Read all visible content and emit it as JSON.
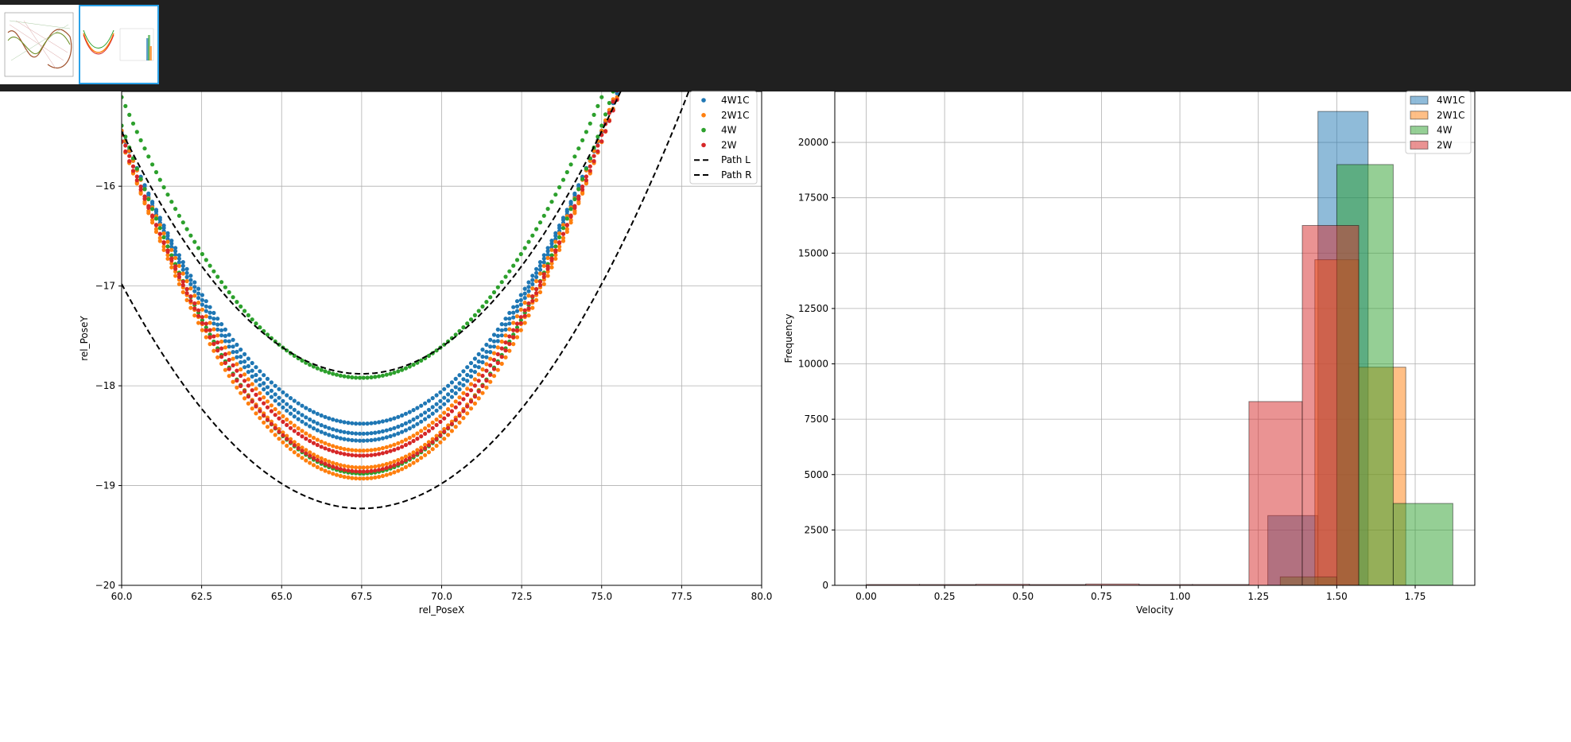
{
  "charts": [
    {
      "type": "scatter",
      "xlabel": "rel_PoseX",
      "ylabel": "rel_PoseY",
      "xlim": [
        60.0,
        80.0
      ],
      "ylim": [
        -20,
        -15.05
      ],
      "xticks": [
        "60.0",
        "62.5",
        "65.0",
        "67.5",
        "70.0",
        "72.5",
        "75.0",
        "77.5",
        "80.0"
      ],
      "yticks": [
        "-20",
        "-19",
        "-18",
        "-17",
        "-16"
      ],
      "grid": true,
      "legend_position": "top-right",
      "legend": [
        "4W1C",
        "2W1C",
        "4W",
        "2W",
        "Path L",
        "Path R"
      ],
      "series": [
        {
          "name": "4W1C",
          "color": "#1f77b4",
          "kind": "points",
          "curves": [
            {
              "vertex_x": 67.5,
              "vertex_y": -18.38,
              "a": 0.052,
              "from": 60,
              "to": 77.8
            },
            {
              "vertex_x": 67.5,
              "vertex_y": -18.48,
              "a": 0.054,
              "from": 60,
              "to": 77.8
            },
            {
              "vertex_x": 67.5,
              "vertex_y": -18.55,
              "a": 0.055,
              "from": 60,
              "to": 77.8
            }
          ]
        },
        {
          "name": "2W1C",
          "color": "#ff7f0e",
          "kind": "points",
          "curves": [
            {
              "vertex_x": 67.5,
              "vertex_y": -18.65,
              "a": 0.057,
              "from": 60,
              "to": 78.0
            },
            {
              "vertex_x": 67.5,
              "vertex_y": -18.82,
              "a": 0.058,
              "from": 60,
              "to": 78.0
            },
            {
              "vertex_x": 67.5,
              "vertex_y": -18.93,
              "a": 0.06,
              "from": 60,
              "to": 78.0
            }
          ]
        },
        {
          "name": "4W",
          "color": "#2ca02c",
          "kind": "points",
          "curves": [
            {
              "vertex_x": 67.5,
              "vertex_y": -17.92,
              "a": 0.05,
              "from": 60,
              "to": 77.2
            },
            {
              "vertex_x": 67.5,
              "vertex_y": -18.88,
              "a": 0.062,
              "from": 60,
              "to": 78.0
            }
          ]
        },
        {
          "name": "2W",
          "color": "#d62728",
          "kind": "points",
          "curves": [
            {
              "vertex_x": 67.5,
              "vertex_y": -18.7,
              "a": 0.056,
              "from": 60,
              "to": 78.3
            },
            {
              "vertex_x": 67.5,
              "vertex_y": -18.86,
              "a": 0.06,
              "from": 60,
              "to": 78.3
            }
          ]
        },
        {
          "name": "Path L",
          "color": "#000000",
          "kind": "dashed",
          "curves": [
            {
              "vertex_x": 67.5,
              "vertex_y": -17.88,
              "a": 0.0432,
              "from": 60,
              "to": 76.5
            }
          ]
        },
        {
          "name": "Path R",
          "color": "#000000",
          "kind": "dashed",
          "curves": [
            {
              "vertex_x": 67.5,
              "vertex_y": -19.23,
              "a": 0.04,
              "from": 60,
              "to": 78.8
            }
          ]
        }
      ]
    },
    {
      "type": "bar",
      "xlabel": "Velocity",
      "ylabel": "Frequency",
      "xlim": [
        -0.1,
        1.94
      ],
      "ylim": [
        0,
        22300
      ],
      "xticks": [
        0.0,
        0.25,
        0.5,
        0.75,
        1.0,
        1.25,
        1.5,
        1.75
      ],
      "yticks": [
        0,
        2500,
        5000,
        7500,
        10000,
        12500,
        15000,
        17500,
        20000
      ],
      "grid": true,
      "legend_position": "top-right",
      "legend": [
        "4W1C",
        "2W1C",
        "4W",
        "2W"
      ],
      "series": [
        {
          "name": "4W1C",
          "color": "#1f77b4",
          "bins": [
            {
              "x0": 1.28,
              "x1": 1.44,
              "count": 3150
            },
            {
              "x0": 1.44,
              "x1": 1.6,
              "count": 21400
            }
          ]
        },
        {
          "name": "2W1C",
          "color": "#ff7f0e",
          "bins": [
            {
              "x0": 1.43,
              "x1": 1.57,
              "count": 14700
            },
            {
              "x0": 1.57,
              "x1": 1.72,
              "count": 9850
            }
          ]
        },
        {
          "name": "4W",
          "color": "#2ca02c",
          "bins": [
            {
              "x0": 1.32,
              "x1": 1.5,
              "count": 380
            },
            {
              "x0": 1.5,
              "x1": 1.68,
              "count": 19000
            },
            {
              "x0": 1.68,
              "x1": 1.87,
              "count": 3700
            }
          ]
        },
        {
          "name": "2W",
          "color": "#d62728",
          "bins": [
            {
              "x0": 0.0,
              "x1": 0.17,
              "count": 40
            },
            {
              "x0": 0.17,
              "x1": 0.35,
              "count": 40
            },
            {
              "x0": 0.35,
              "x1": 0.52,
              "count": 50
            },
            {
              "x0": 0.52,
              "x1": 0.7,
              "count": 40
            },
            {
              "x0": 0.7,
              "x1": 0.87,
              "count": 60
            },
            {
              "x0": 0.87,
              "x1": 1.04,
              "count": 40
            },
            {
              "x0": 1.04,
              "x1": 1.22,
              "count": 40
            },
            {
              "x0": 1.22,
              "x1": 1.39,
              "count": 8300
            },
            {
              "x0": 1.39,
              "x1": 1.57,
              "count": 16250
            }
          ]
        }
      ]
    }
  ]
}
